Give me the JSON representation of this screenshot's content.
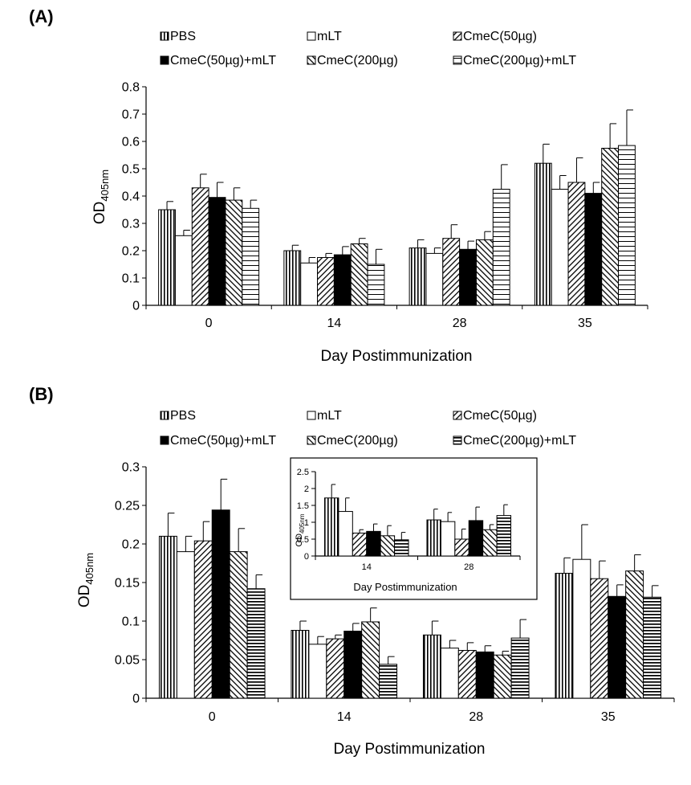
{
  "chart_data": [
    {
      "panel_label": "(A)",
      "type": "bar",
      "ylabel_main": "OD",
      "ylabel_sub": "405nm",
      "xlabel": "Day Postimmunization",
      "ylim": [
        0,
        0.8
      ],
      "yticks": [
        "0",
        "0.1",
        "0.2",
        "0.3",
        "0.4",
        "0.5",
        "0.6",
        "0.7",
        "0.8"
      ],
      "categories": [
        "0",
        "14",
        "28",
        "35"
      ],
      "series": [
        {
          "name": "PBS",
          "pattern": "vlines",
          "values": [
            0.35,
            0.2,
            0.21,
            0.52
          ],
          "errors": [
            0.03,
            0.02,
            0.03,
            0.07
          ]
        },
        {
          "name": "mLT",
          "pattern": "white",
          "values": [
            0.255,
            0.155,
            0.19,
            0.425
          ],
          "errors": [
            0.02,
            0.02,
            0.02,
            0.05
          ]
        },
        {
          "name": "CmeC(50µg)",
          "pattern": "fdiag",
          "values": [
            0.43,
            0.175,
            0.245,
            0.45
          ],
          "errors": [
            0.05,
            0.015,
            0.05,
            0.09
          ]
        },
        {
          "name": "CmeC(50µg)+mLT",
          "pattern": "black",
          "values": [
            0.395,
            0.185,
            0.205,
            0.41
          ],
          "errors": [
            0.055,
            0.03,
            0.03,
            0.04
          ]
        },
        {
          "name": "CmeC(200µg)",
          "pattern": "bdiag",
          "values": [
            0.385,
            0.225,
            0.24,
            0.575
          ],
          "errors": [
            0.045,
            0.02,
            0.03,
            0.09
          ]
        },
        {
          "name": "CmeC(200µg)+mLT",
          "pattern": "hlines",
          "values": [
            0.355,
            0.15,
            0.425,
            0.585
          ],
          "errors": [
            0.03,
            0.055,
            0.09,
            0.13
          ]
        }
      ]
    },
    {
      "panel_label": "(B)",
      "type": "bar",
      "ylabel_main": "OD",
      "ylabel_sub": "405nm",
      "xlabel": "Day Postimmunization",
      "ylim": [
        0,
        0.3
      ],
      "yticks": [
        "0",
        "0.05",
        "0.1",
        "0.15",
        "0.2",
        "0.25",
        "0.3"
      ],
      "categories": [
        "0",
        "14",
        "28",
        "35"
      ],
      "series": [
        {
          "name": "PBS",
          "pattern": "vlines",
          "values": [
            0.21,
            0.088,
            0.082,
            0.162
          ],
          "errors": [
            0.03,
            0.012,
            0.018,
            0.02
          ]
        },
        {
          "name": "mLT",
          "pattern": "white",
          "values": [
            0.19,
            0.07,
            0.065,
            0.18
          ],
          "errors": [
            0.02,
            0.01,
            0.01,
            0.045
          ]
        },
        {
          "name": "CmeC(50µg)",
          "pattern": "fdiag",
          "values": [
            0.204,
            0.077,
            0.062,
            0.155
          ],
          "errors": [
            0.025,
            0.005,
            0.01,
            0.023
          ]
        },
        {
          "name": "CmeC(50µg)+mLT",
          "pattern": "black",
          "values": [
            0.244,
            0.087,
            0.06,
            0.132
          ],
          "errors": [
            0.04,
            0.01,
            0.008,
            0.015
          ]
        },
        {
          "name": "CmeC(200µg)",
          "pattern": "bdiag",
          "values": [
            0.19,
            0.099,
            0.056,
            0.165
          ],
          "errors": [
            0.03,
            0.018,
            0.005,
            0.021
          ]
        },
        {
          "name": "CmeC(200µg)+mLT",
          "pattern": "hlines-thick",
          "values": [
            0.142,
            0.044,
            0.078,
            0.131
          ],
          "errors": [
            0.018,
            0.01,
            0.024,
            0.015
          ]
        }
      ],
      "inset": {
        "ylabel_main": "OD",
        "ylabel_sub": "405nm",
        "xlabel": "Day Postimmunization",
        "ylim": [
          0,
          2.5
        ],
        "yticks": [
          "0",
          "0.5",
          "1",
          "1.5",
          "2",
          "2.5"
        ],
        "categories": [
          "14",
          "28"
        ],
        "series": [
          {
            "name": "PBS",
            "pattern": "vlines",
            "values": [
              1.72,
              1.07
            ],
            "errors": [
              0.4,
              0.32
            ]
          },
          {
            "name": "mLT",
            "pattern": "white",
            "values": [
              1.32,
              1.02
            ],
            "errors": [
              0.4,
              0.27
            ]
          },
          {
            "name": "CmeC(50µg)",
            "pattern": "fdiag",
            "values": [
              0.68,
              0.5
            ],
            "errors": [
              0.1,
              0.3
            ]
          },
          {
            "name": "CmeC(50µg)+mLT",
            "pattern": "black",
            "values": [
              0.73,
              1.05
            ],
            "errors": [
              0.22,
              0.4
            ]
          },
          {
            "name": "CmeC(200µg)",
            "pattern": "bdiag",
            "values": [
              0.6,
              0.78
            ],
            "errors": [
              0.3,
              0.15
            ]
          },
          {
            "name": "CmeC(200µg)+mLT",
            "pattern": "hlines-thick",
            "values": [
              0.48,
              1.2
            ],
            "errors": [
              0.22,
              0.32
            ]
          }
        ]
      }
    }
  ]
}
